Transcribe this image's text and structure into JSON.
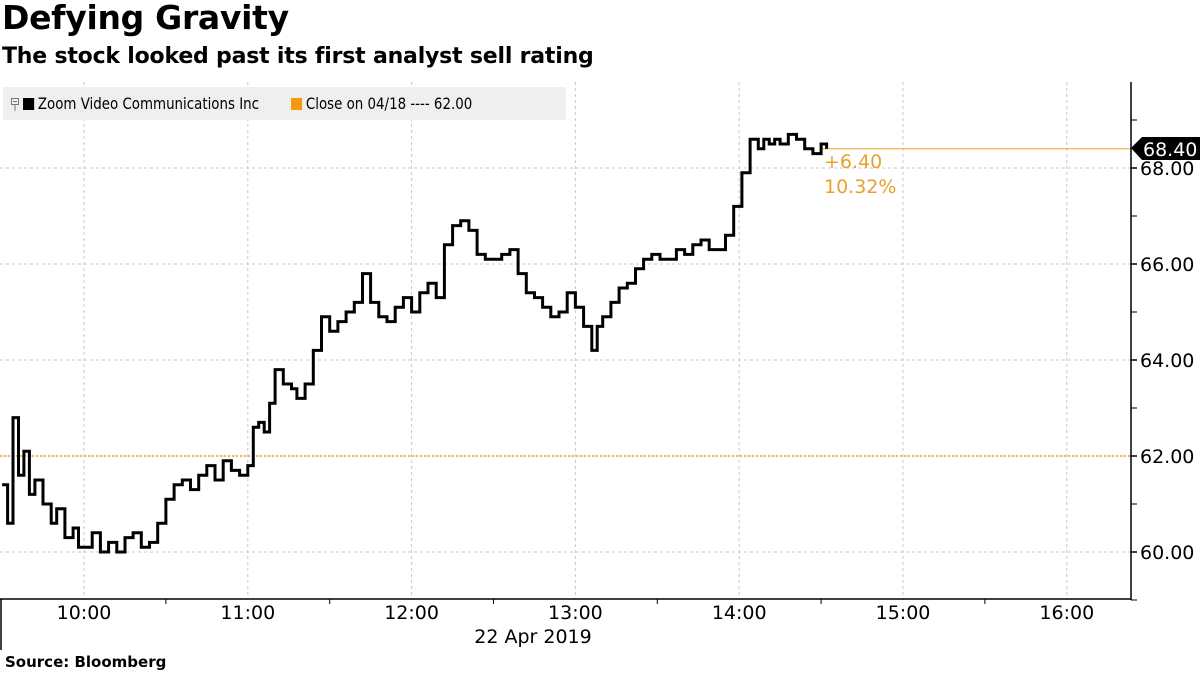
{
  "header": {
    "title": "Defying Gravity",
    "subtitle": "The stock looked past its first analyst sell rating"
  },
  "legend": {
    "items": [
      {
        "label": "Zoom Video Communications Inc",
        "color": "#000000"
      },
      {
        "label": "Close on 04/18 ---- 62.00",
        "color": "#f39c12"
      }
    ]
  },
  "annotations": {
    "last_price": "68.40",
    "change": "+6.40",
    "change_pct": "10.32%"
  },
  "xaxis": {
    "date_label": "22 Apr 2019"
  },
  "footer": {
    "source": "Source: Bloomberg"
  },
  "colors": {
    "line": "#000000",
    "reference": "#f0a020",
    "annotation": "#e8a030",
    "grid": "#c8c8c8",
    "legend_bg": "#efefef"
  },
  "chart_data": {
    "type": "line",
    "title": "Defying Gravity",
    "subtitle": "The stock looked past its first analyst sell rating",
    "xlabel": "22 Apr 2019",
    "ylabel": "",
    "x_tick_labels": [
      "10:00",
      "11:00",
      "12:00",
      "13:00",
      "14:00",
      "15:00",
      "16:00"
    ],
    "y_tick_labels": [
      "60.00",
      "62.00",
      "64.00",
      "66.00",
      "68.00"
    ],
    "ylim": [
      59.0,
      69.6
    ],
    "xlim": [
      "09:30",
      "16:20"
    ],
    "grid": true,
    "legend_position": "top-left",
    "reference_line": {
      "label": "Close on 04/18",
      "value": 62.0
    },
    "last_value": 68.4,
    "change": 6.4,
    "change_pct": 10.32,
    "series": [
      {
        "name": "Zoom Video Communications Inc",
        "x": [
          "09:30",
          "09:32",
          "09:34",
          "09:36",
          "09:38",
          "09:40",
          "09:42",
          "09:45",
          "09:48",
          "09:50",
          "09:53",
          "09:56",
          "09:58",
          "10:00",
          "10:03",
          "10:06",
          "10:09",
          "10:12",
          "10:15",
          "10:18",
          "10:21",
          "10:24",
          "10:27",
          "10:30",
          "10:33",
          "10:36",
          "10:39",
          "10:42",
          "10:45",
          "10:48",
          "10:51",
          "10:54",
          "10:57",
          "11:00",
          "11:02",
          "11:04",
          "11:06",
          "11:08",
          "11:10",
          "11:13",
          "11:16",
          "11:18",
          "11:21",
          "11:24",
          "11:27",
          "11:30",
          "11:33",
          "11:36",
          "11:39",
          "11:42",
          "11:45",
          "11:48",
          "11:51",
          "11:54",
          "11:57",
          "12:00",
          "12:03",
          "12:06",
          "12:09",
          "12:12",
          "12:15",
          "12:18",
          "12:21",
          "12:24",
          "12:27",
          "12:30",
          "12:33",
          "12:36",
          "12:39",
          "12:42",
          "12:45",
          "12:48",
          "12:51",
          "12:54",
          "12:57",
          "13:00",
          "13:03",
          "13:06",
          "13:08",
          "13:10",
          "13:13",
          "13:16",
          "13:19",
          "13:22",
          "13:25",
          "13:28",
          "13:31",
          "13:34",
          "13:37",
          "13:40",
          "13:43",
          "13:46",
          "13:49",
          "13:52",
          "13:55",
          "13:58",
          "14:01",
          "14:04",
          "14:07",
          "14:09",
          "14:11",
          "14:13",
          "14:15",
          "14:18",
          "14:21",
          "14:24",
          "14:27",
          "14:30",
          "14:32"
        ],
        "values": [
          61.4,
          60.6,
          62.8,
          61.6,
          62.1,
          61.2,
          61.5,
          61.0,
          60.6,
          60.9,
          60.3,
          60.5,
          60.1,
          60.1,
          60.4,
          60.0,
          60.2,
          60.0,
          60.3,
          60.4,
          60.1,
          60.2,
          60.6,
          61.1,
          61.4,
          61.5,
          61.3,
          61.6,
          61.8,
          61.5,
          61.9,
          61.7,
          61.6,
          61.8,
          62.6,
          62.7,
          62.5,
          63.1,
          63.8,
          63.5,
          63.4,
          63.2,
          63.5,
          64.2,
          64.9,
          64.6,
          64.8,
          65.0,
          65.2,
          65.8,
          65.2,
          64.9,
          64.8,
          65.1,
          65.3,
          65.0,
          65.4,
          65.6,
          65.3,
          66.4,
          66.8,
          66.9,
          66.7,
          66.2,
          66.1,
          66.1,
          66.2,
          66.3,
          65.8,
          65.4,
          65.3,
          65.1,
          64.9,
          65.0,
          65.4,
          65.1,
          64.7,
          64.2,
          64.7,
          64.9,
          65.2,
          65.5,
          65.6,
          65.9,
          66.1,
          66.2,
          66.1,
          66.1,
          66.3,
          66.2,
          66.4,
          66.5,
          66.3,
          66.3,
          66.6,
          67.2,
          67.9,
          68.6,
          68.4,
          68.6,
          68.5,
          68.6,
          68.5,
          68.7,
          68.6,
          68.4,
          68.3,
          68.5,
          68.4
        ]
      }
    ]
  }
}
